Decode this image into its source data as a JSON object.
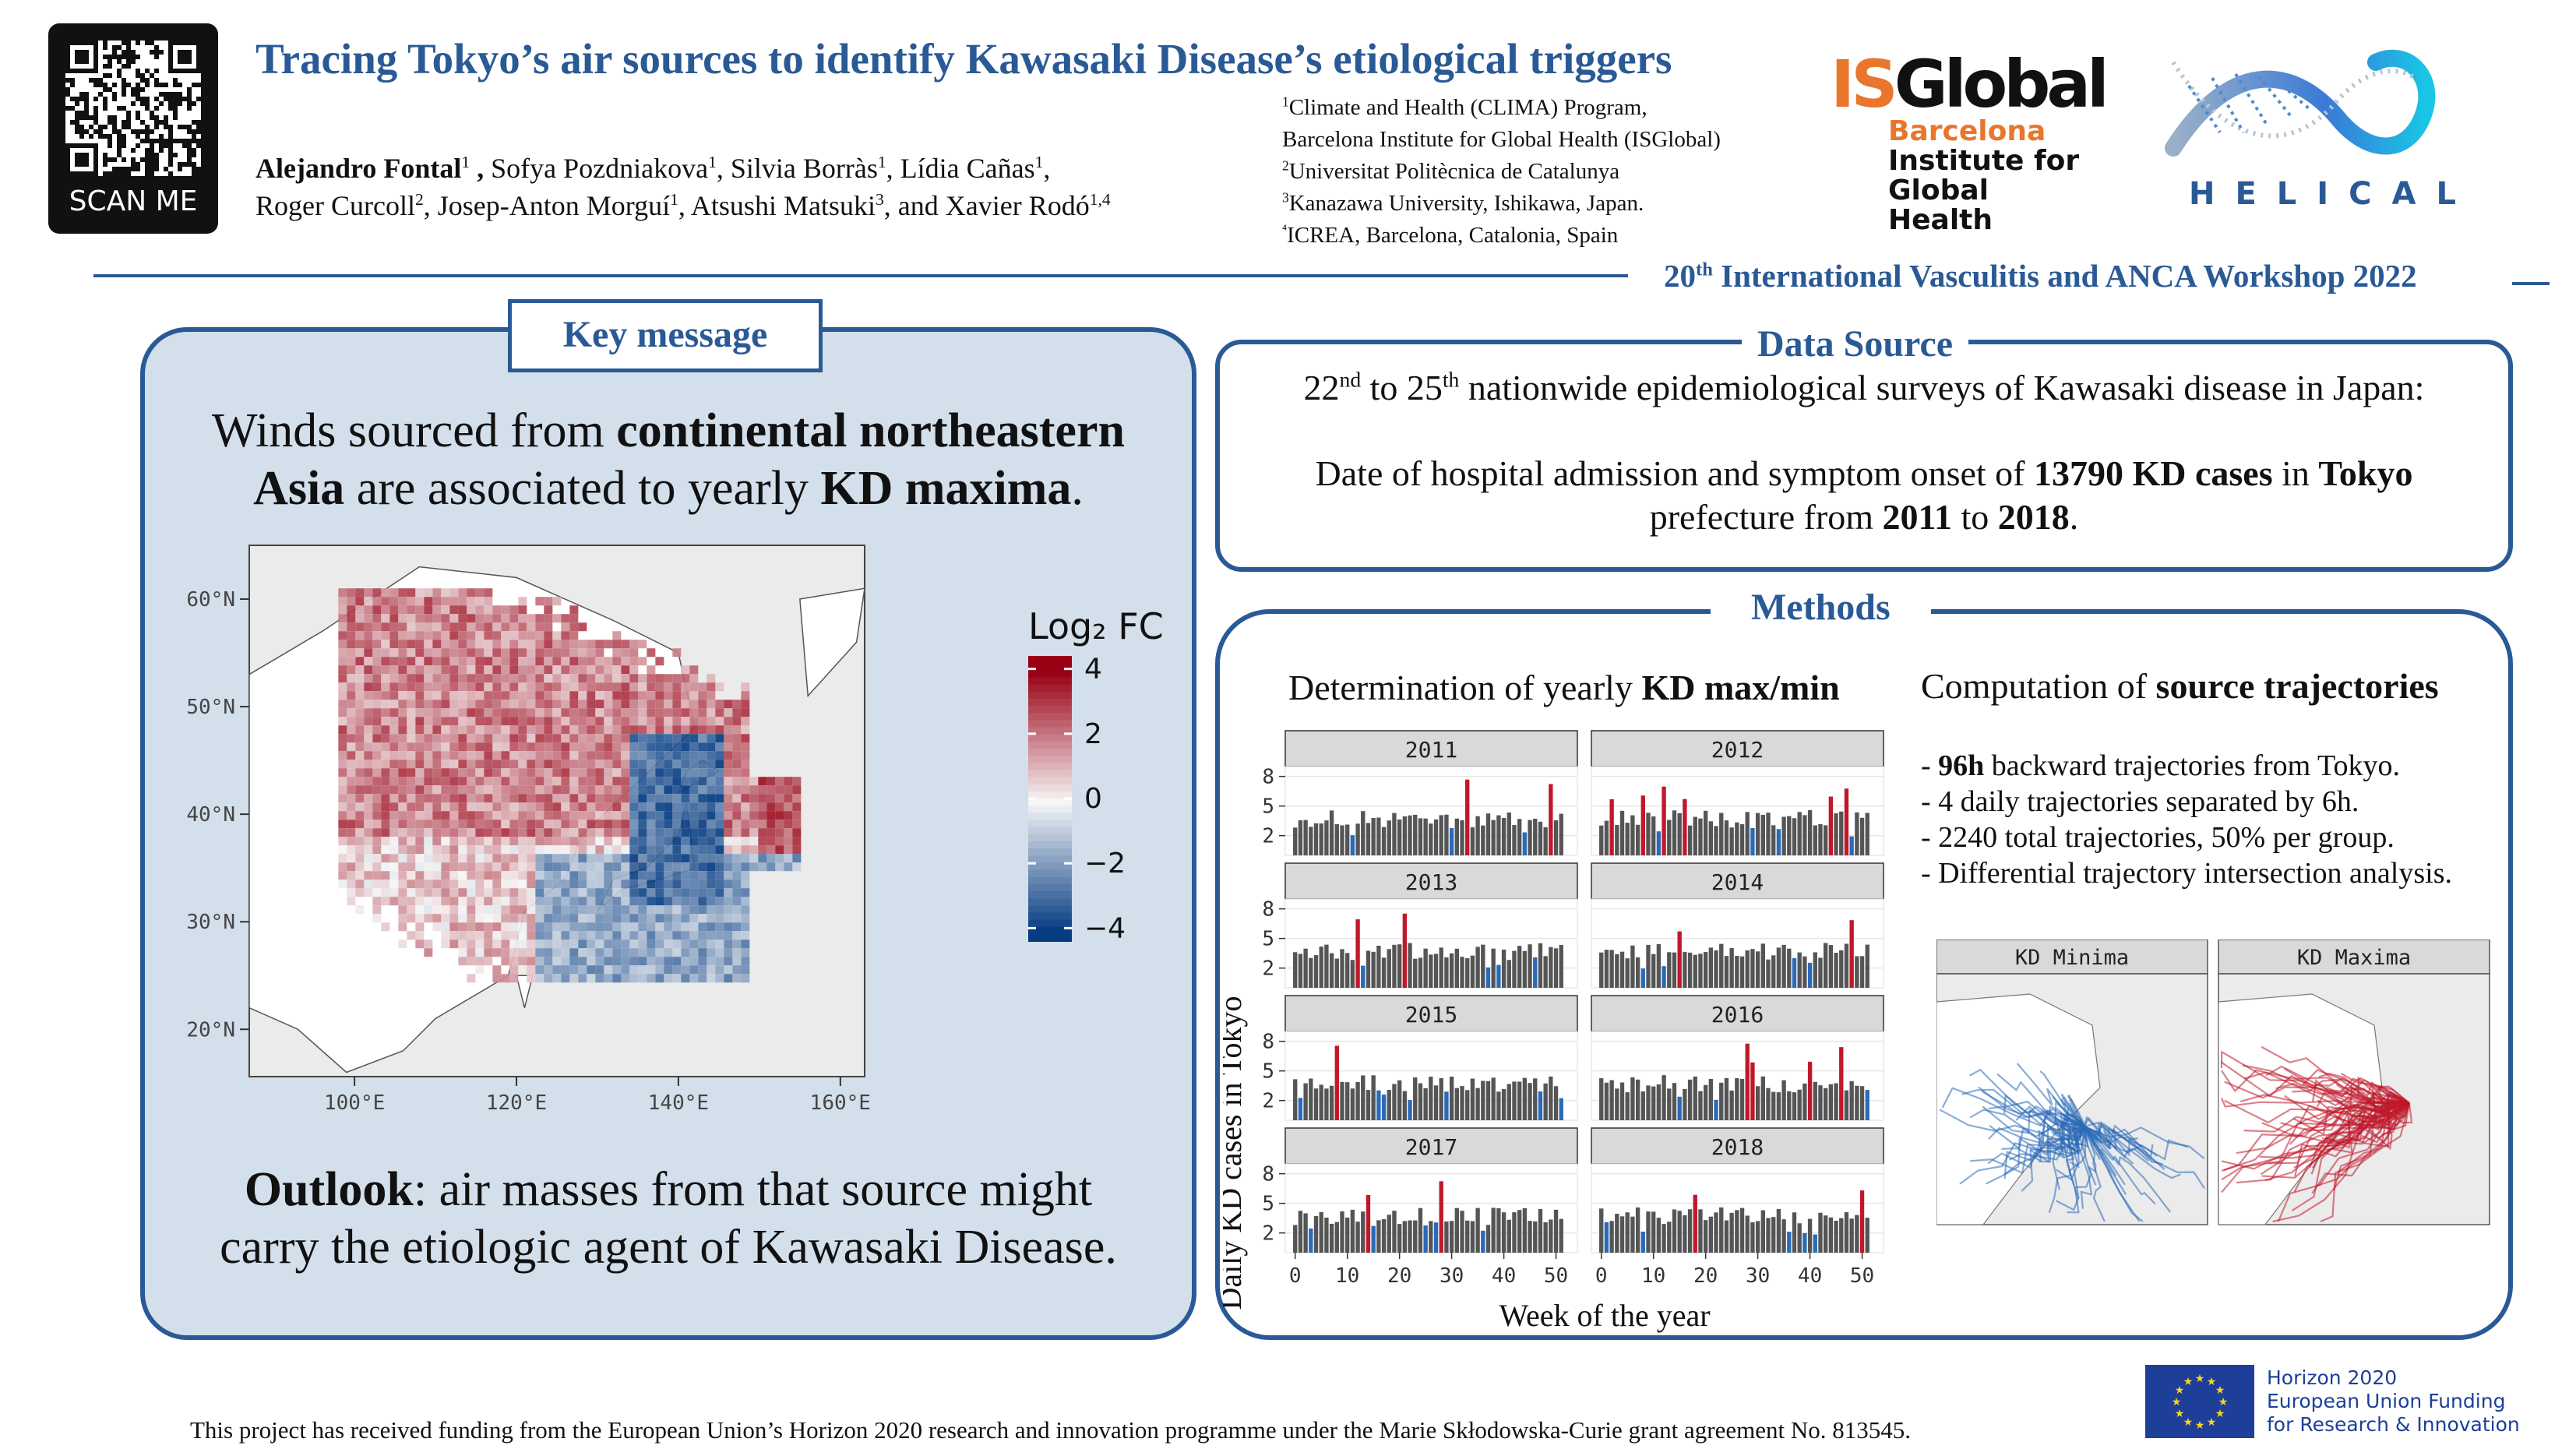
{
  "qr": {
    "label": "SCAN ME"
  },
  "title": "Tracing Tokyo’s air sources to identify Kawasaki Disease’s etiological triggers",
  "authors": {
    "line1": [
      {
        "name": "Alejandro Fontal",
        "sup": "1",
        "bold": true,
        "sep": " , "
      },
      {
        "name": "Sofya Pozdniakova",
        "sup": "1",
        "sep": ", "
      },
      {
        "name": "Silvia Borràs",
        "sup": "1",
        "sep": ", "
      },
      {
        "name": "Lídia Cañas",
        "sup": "1",
        "sep": ","
      }
    ],
    "line2": [
      {
        "name": "Roger Curcoll",
        "sup": "2",
        "sep": ", "
      },
      {
        "name": "Josep-Anton Morguí",
        "sup": "1",
        "sep": ", "
      },
      {
        "name": "Atsushi Matsuki",
        "sup": "3",
        "sep": ", and "
      },
      {
        "name": "Xavier Rodó",
        "sup": "1,4",
        "sep": ""
      }
    ]
  },
  "affiliations": [
    {
      "sup": "1",
      "text": "Climate and Health (CLIMA) Program,"
    },
    {
      "sup": "",
      "text": "Barcelona Institute for Global Health (ISGlobal)"
    },
    {
      "sup": "2",
      "text": "Universitat Politècnica de Catalunya"
    },
    {
      "sup": "3",
      "text": "Kanazawa University, Ishikawa, Japan."
    },
    {
      "sup": "⁴",
      "text": "ICREA, Barcelona, Catalonia, Spain"
    }
  ],
  "logo_isglobal": {
    "top": "ISGlobal",
    "l1": "Barcelona",
    "l2": "Institute for",
    "l3": "Global Health"
  },
  "logo_helical": {
    "text": "HELICAL"
  },
  "workshop": {
    "prefix": "20",
    "sup": "th",
    "text": " International Vasculitis and ANCA Workshop 2022"
  },
  "key_message": {
    "tag": "Key message",
    "l1a": "Winds sourced from ",
    "l1b": "continental northeastern",
    "l2a": "Asia",
    "l2b": " are associated to yearly ",
    "l2c": "KD maxima",
    "l2d": ".",
    "outlook_label": "Outlook",
    "outlook_l1": ": air masses from that source might",
    "outlook_l2": "carry the etiologic agent of Kawasaki Disease."
  },
  "map": {
    "lat_ticks": [
      "60°N",
      "50°N",
      "40°N",
      "30°N",
      "20°N"
    ],
    "lon_ticks": [
      "100°E",
      "120°E",
      "140°E",
      "160°E"
    ],
    "legend_title": "Log₂ FC",
    "legend_ticks": [
      "4",
      "2",
      "0",
      "−2",
      "−4"
    ]
  },
  "data_source": {
    "tag": "Data Source",
    "l1a": "22",
    "l1b": "nd",
    "l1c": " to 25",
    "l1d": "th",
    "l1e": " nationwide epidemiological surveys of Kawasaki disease in Japan:",
    "l2a": "Date of hospital admission and symptom onset of ",
    "l2b": "13790 KD cases",
    "l2c": " in ",
    "l2d": "Tokyo",
    "l3a": "prefecture from ",
    "l3b": "2011",
    "l3c": " to ",
    "l3d": "2018",
    "l3e": "."
  },
  "methods": {
    "tag": "Methods",
    "det_a": "Determination of yearly ",
    "det_b": "KD max/min",
    "comp_a": "Computation of ",
    "comp_b": "source trajectories",
    "b1a": "- ",
    "b1b": "96h",
    "b1c": " backward trajectories from Tokyo.",
    "b2": "- 4 daily trajectories separated by 6h.",
    "b3": "- 2240 total trajectories, 50% per group.",
    "b4": "- Differential trajectory intersection analysis.",
    "traj_min": "KD Minima",
    "traj_max": "KD Maxima"
  },
  "chart_data": {
    "type": "bar",
    "panels": [
      "2011",
      "2012",
      "2013",
      "2014",
      "2015",
      "2016",
      "2017",
      "2018"
    ],
    "ylabel": "Daily KD cases in Tokyo",
    "xlabel": "Week of the year",
    "yticks": [
      "8",
      "5",
      "2"
    ],
    "xticks": [
      "0",
      "10",
      "20",
      "30",
      "40",
      "50"
    ],
    "weeks": 52,
    "ylim": [
      0,
      9
    ],
    "colors": {
      "normal": "#555555",
      "max": "#c0182a",
      "min": "#2a6ab8"
    }
  },
  "footer": "This project has received funding from the European Union’s Horizon 2020 research and innovation programme under the Marie Skłodowska-Curie grant agreement No. 813545.",
  "eu": {
    "l1": "Horizon 2020",
    "l2": "European Union Funding",
    "l3": "for Research & Innovation"
  }
}
